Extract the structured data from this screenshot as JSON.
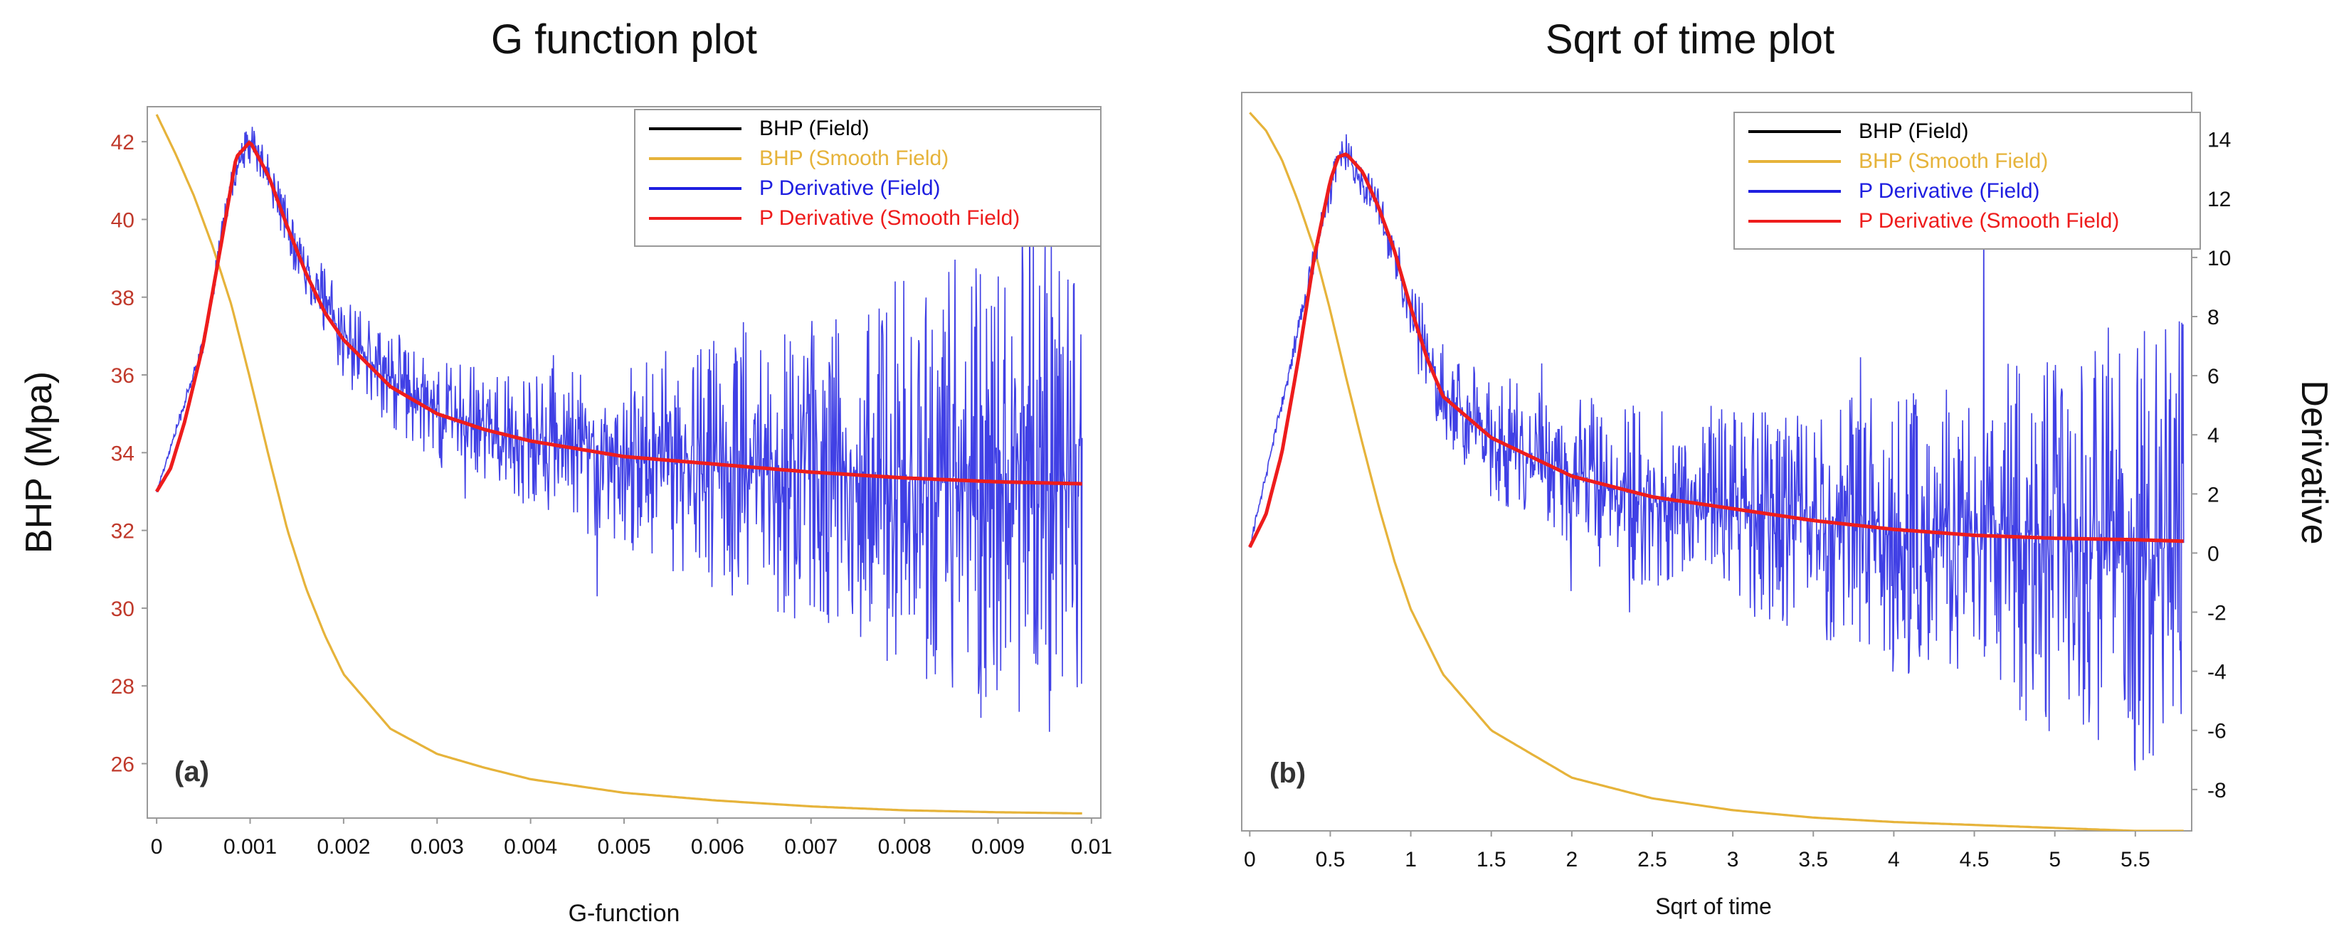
{
  "colors": {
    "bhp_field": "#000000",
    "bhp_smooth": "#e6b33a",
    "deriv_field": "#1f1fe0",
    "deriv_smooth": "#ee1c1c",
    "left_tick_red": "#c0392b",
    "frame": "#999999"
  },
  "chart_data": [
    {
      "type": "line",
      "panel_label": "(a)",
      "title": "G function plot",
      "xlabel": "G-function",
      "ylabel": "BHP (Mpa)",
      "x_ticks": [
        "0",
        "0.001",
        "0.002",
        "0.003",
        "0.004",
        "0.005",
        "0.006",
        "0.007",
        "0.008",
        "0.009",
        "0.01"
      ],
      "y_ticks": [
        "26",
        "28",
        "30",
        "32",
        "34",
        "36",
        "38",
        "40",
        "42"
      ],
      "xlim": [
        -0.0001,
        0.0101
      ],
      "ylim": [
        24.6,
        42.9
      ],
      "legend": [
        "BHP (Field)",
        "BHP (Smooth Field)",
        "P Derivative (Field)",
        "P Derivative (Smooth Field)"
      ],
      "legend_position": "top-right",
      "series": [
        {
          "name": "BHP (Smooth Field)",
          "x": [
            0,
            0.0002,
            0.0004,
            0.0006,
            0.0008,
            0.001,
            0.0012,
            0.0014,
            0.0016,
            0.0018,
            0.002,
            0.0025,
            0.003,
            0.0035,
            0.004,
            0.005,
            0.006,
            0.007,
            0.008,
            0.009,
            0.0099
          ],
          "y": [
            42.7,
            41.7,
            40.6,
            39.3,
            37.8,
            35.9,
            33.9,
            32.0,
            30.5,
            29.3,
            28.3,
            26.9,
            26.25,
            25.9,
            25.6,
            25.25,
            25.05,
            24.9,
            24.8,
            24.75,
            24.72
          ]
        },
        {
          "name": "P Derivative (Smooth Field)",
          "x": [
            0,
            0.00015,
            0.0003,
            0.0005,
            0.0007,
            0.00085,
            0.001,
            0.0012,
            0.0014,
            0.0016,
            0.0018,
            0.002,
            0.0025,
            0.003,
            0.0035,
            0.004,
            0.005,
            0.006,
            0.007,
            0.008,
            0.009,
            0.0099
          ],
          "y": [
            33.0,
            33.6,
            34.8,
            36.8,
            39.5,
            41.6,
            42.0,
            41.1,
            39.8,
            38.6,
            37.6,
            36.9,
            35.7,
            35.0,
            34.6,
            34.3,
            33.9,
            33.7,
            33.5,
            33.35,
            33.25,
            33.2
          ]
        },
        {
          "name": "P Derivative (Field)",
          "x": [
            0,
            0.0005,
            0.0008,
            0.001,
            0.0012,
            0.0015,
            0.002,
            0.003,
            0.004,
            0.005,
            0.006,
            0.007,
            0.008,
            0.009,
            0.0099
          ],
          "y": [
            33.0,
            36.8,
            41.0,
            42.0,
            41.1,
            39.2,
            36.9,
            35.0,
            34.3,
            33.9,
            33.7,
            33.5,
            33.35,
            33.25,
            33.2
          ],
          "noise_amplitude": [
            0.05,
            0.2,
            0.4,
            0.5,
            0.5,
            0.6,
            1.0,
            1.2,
            1.5,
            2.2,
            2.8,
            3.5,
            4.5,
            5.5,
            6.0
          ]
        }
      ]
    },
    {
      "type": "line",
      "panel_label": "(b)",
      "title": "Sqrt of time plot",
      "xlabel": "Sqrt of time",
      "ylabel": "Derivative",
      "x_ticks": [
        "0",
        "0.5",
        "1",
        "1.5",
        "2",
        "2.5",
        "3",
        "3.5",
        "4",
        "4.5",
        "5",
        "5.5"
      ],
      "y_ticks": [
        "-8",
        "-6",
        "-4",
        "-2",
        "0",
        "2",
        "4",
        "6",
        "8",
        "10",
        "12",
        "14"
      ],
      "xlim": [
        -0.05,
        5.85
      ],
      "ylim": [
        -9.4,
        15.1
      ],
      "legend": [
        "BHP (Field)",
        "BHP (Smooth Field)",
        "P Derivative (Field)",
        "P Derivative (Smooth Field)"
      ],
      "legend_position": "top-right",
      "series": [
        {
          "name": "BHP (Smooth Field)",
          "x": [
            0,
            0.1,
            0.2,
            0.3,
            0.4,
            0.5,
            0.6,
            0.7,
            0.8,
            0.9,
            1.0,
            1.2,
            1.5,
            2.0,
            2.5,
            3.0,
            3.5,
            4.0,
            4.5,
            5.0,
            5.5,
            5.8
          ],
          "y": [
            14.9,
            14.3,
            13.3,
            11.9,
            10.3,
            8.2,
            5.9,
            3.7,
            1.6,
            -0.3,
            -1.9,
            -4.1,
            -6.0,
            -7.6,
            -8.3,
            -8.7,
            -8.95,
            -9.1,
            -9.2,
            -9.3,
            -9.4,
            -9.4
          ]
        },
        {
          "name": "P Derivative (Smooth Field)",
          "x": [
            0,
            0.1,
            0.2,
            0.3,
            0.4,
            0.5,
            0.55,
            0.6,
            0.7,
            0.8,
            0.9,
            1.0,
            1.1,
            1.2,
            1.5,
            2.0,
            2.5,
            3.0,
            3.5,
            4.0,
            4.5,
            5.0,
            5.5,
            5.8
          ],
          "y": [
            0.2,
            1.3,
            3.4,
            6.5,
            10.0,
            12.6,
            13.4,
            13.5,
            12.9,
            11.7,
            10.2,
            8.3,
            6.6,
            5.3,
            3.9,
            2.6,
            1.9,
            1.5,
            1.1,
            0.8,
            0.6,
            0.5,
            0.45,
            0.4
          ]
        },
        {
          "name": "P Derivative (Field)",
          "x": [
            0,
            0.4,
            0.55,
            0.6,
            0.8,
            1.0,
            1.2,
            1.5,
            2.0,
            2.5,
            3.0,
            3.5,
            4.0,
            4.5,
            5.0,
            5.5,
            5.8
          ],
          "y": [
            0.2,
            10.0,
            13.4,
            13.5,
            11.7,
            8.3,
            5.3,
            3.9,
            2.6,
            1.9,
            1.5,
            1.1,
            0.8,
            0.6,
            0.5,
            0.45,
            0.4
          ],
          "noise_amplitude": [
            0.1,
            0.4,
            0.6,
            0.6,
            0.6,
            0.8,
            1.6,
            2.0,
            2.4,
            2.8,
            3.0,
            3.4,
            4.2,
            5.0,
            6.0,
            6.8,
            7.0
          ]
        }
      ]
    }
  ]
}
